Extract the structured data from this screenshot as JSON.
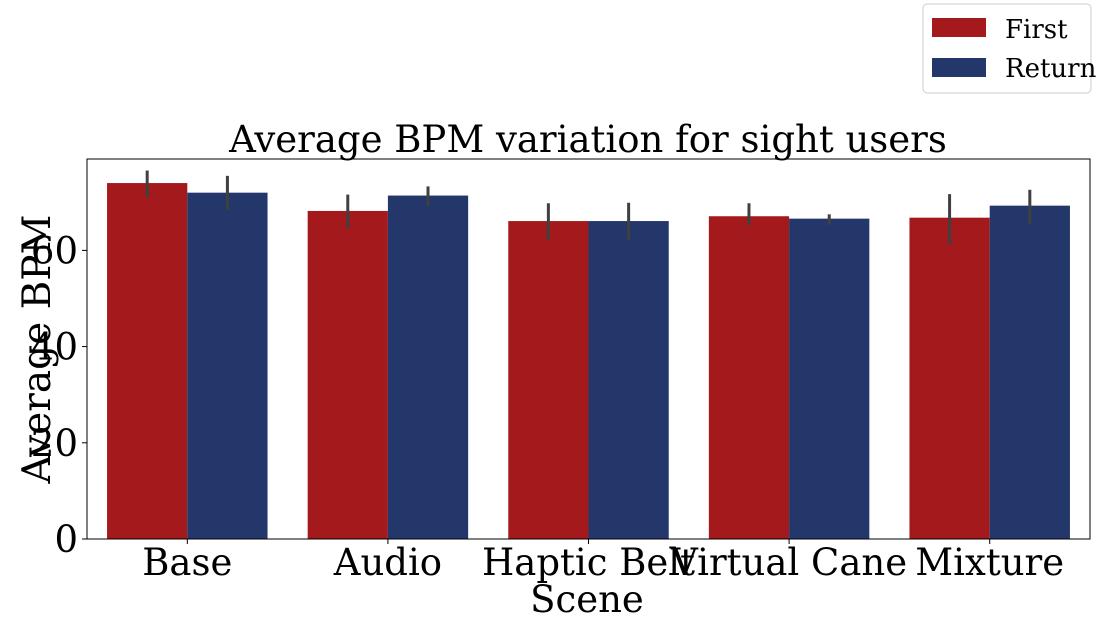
{
  "chart_data": {
    "type": "bar",
    "title": "Average BPM variation for sight users",
    "xlabel": "Scene",
    "ylabel": "Average BPM",
    "categories": [
      "Base",
      "Audio",
      "Haptic Belt",
      "Virtual Cane",
      "Mixture"
    ],
    "ylim": [
      0,
      79
    ],
    "yticks": [
      0,
      20,
      40,
      60
    ],
    "ytick_labels": [
      "0",
      "20",
      "40",
      "60"
    ],
    "grid": false,
    "legend_position": "top-right, outside plot",
    "series": [
      {
        "name": "First",
        "color": "#a3191c",
        "values": [
          74,
          68.2,
          66.1,
          67.1,
          66.8
        ],
        "error_low": [
          71,
          64.5,
          62.2,
          65.2,
          61.2
        ],
        "error_high": [
          76.6,
          71.6,
          69.8,
          69.8,
          71.7
        ]
      },
      {
        "name": "Return",
        "color": "#23376b",
        "values": [
          72,
          71.4,
          66.1,
          66.6,
          69.3
        ],
        "error_low": [
          68.4,
          69.2,
          62.2,
          65.3,
          65.5
        ],
        "error_high": [
          75.5,
          73.3,
          69.9,
          67.5,
          72.6
        ]
      }
    ],
    "error_bar_color": "#404040"
  }
}
